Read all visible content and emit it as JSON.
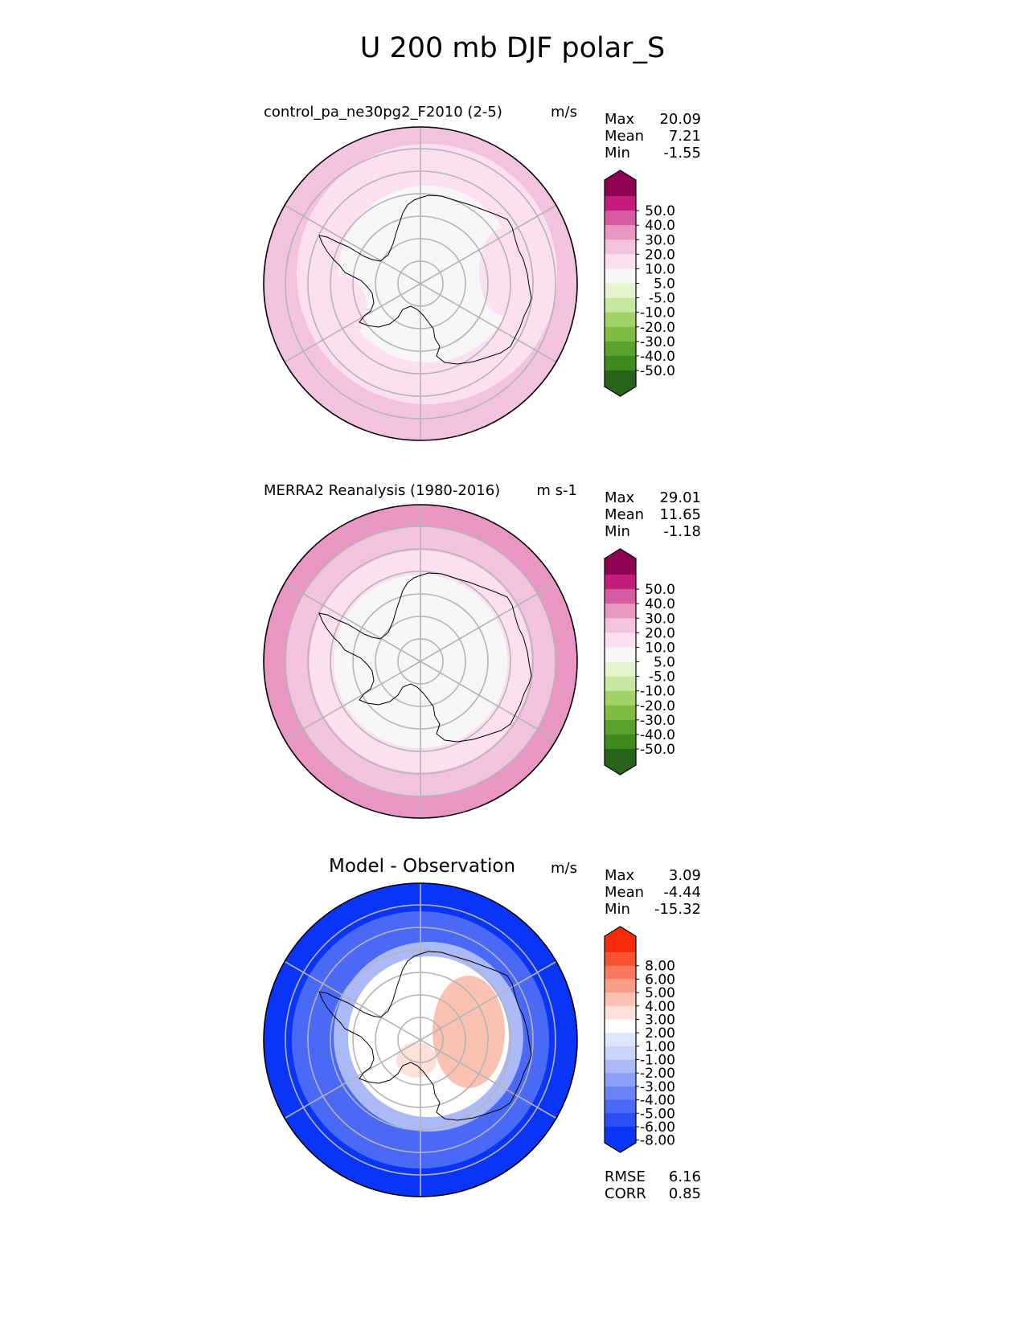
{
  "title": "U 200 mb DJF polar_S",
  "panels": [
    {
      "name": "control_pa_ne30pg2_F2010 (2-5)",
      "units": "m/s",
      "stats": [
        {
          "label": "Max",
          "value": "20.09"
        },
        {
          "label": "Mean",
          "value": "7.21"
        },
        {
          "label": "Min",
          "value": "-1.55"
        }
      ],
      "colorbar_ticks": [
        "50.0",
        "40.0",
        "30.0",
        "20.0",
        "10.0",
        "5.0",
        "-5.0",
        "-10.0",
        "-20.0",
        "-30.0",
        "-40.0",
        "-50.0"
      ]
    },
    {
      "name": "MERRA2 Reanalysis (1980-2016)",
      "units": "m s-1",
      "stats": [
        {
          "label": "Max",
          "value": "29.01"
        },
        {
          "label": "Mean",
          "value": "11.65"
        },
        {
          "label": "Min",
          "value": "-1.18"
        }
      ],
      "colorbar_ticks": [
        "50.0",
        "40.0",
        "30.0",
        "20.0",
        "10.0",
        "5.0",
        "-5.0",
        "-10.0",
        "-20.0",
        "-30.0",
        "-40.0",
        "-50.0"
      ]
    },
    {
      "name": "Model - Observation",
      "units": "m/s",
      "stats": [
        {
          "label": "Max",
          "value": "3.09"
        },
        {
          "label": "Mean",
          "value": "-4.44"
        },
        {
          "label": "Min",
          "value": "-15.32"
        }
      ],
      "colorbar_ticks": [
        "8.00",
        "6.00",
        "5.00",
        "4.00",
        "3.00",
        "2.00",
        "1.00",
        "-1.00",
        "-2.00",
        "-3.00",
        "-4.00",
        "-5.00",
        "-6.00",
        "-8.00"
      ],
      "metrics": [
        {
          "label": "RMSE",
          "value": "6.16"
        },
        {
          "label": "CORR",
          "value": "0.85"
        }
      ]
    }
  ],
  "chart_data": [
    {
      "type": "heatmap",
      "projection": "south polar stereographic",
      "title": "control_pa_ne30pg2_F2010 (2-5)",
      "units": "m/s",
      "max": 20.09,
      "mean": 7.21,
      "min": -1.55,
      "levels": [
        -50,
        -40,
        -30,
        -20,
        -10,
        -5,
        5,
        10,
        20,
        30,
        40,
        50
      ],
      "colors": [
        "#276419",
        "#3d8b1f",
        "#5ca12e",
        "#7fbc41",
        "#a4d26a",
        "#c7e8a0",
        "#e6f5d0",
        "#f7f7f7",
        "#fde0ef",
        "#f3c2de",
        "#e996c5",
        "#d65aa2",
        "#c51b7d",
        "#8e0152"
      ],
      "fill_regions": [
        {
          "desc": "outer ring and lobes",
          "band": [
            10,
            20
          ],
          "color": "#f3c2de"
        },
        {
          "desc": "transition ring",
          "band": [
            5,
            10
          ],
          "color": "#fde0ef"
        },
        {
          "desc": "polar interior",
          "band": [
            -5,
            5
          ],
          "color": "#f7f7f7"
        }
      ]
    },
    {
      "type": "heatmap",
      "projection": "south polar stereographic",
      "title": "MERRA2 Reanalysis (1980-2016)",
      "units": "m s-1",
      "max": 29.01,
      "mean": 11.65,
      "min": -1.18,
      "levels": [
        -50,
        -40,
        -30,
        -20,
        -10,
        -5,
        5,
        10,
        20,
        30,
        40,
        50
      ],
      "colors": [
        "#276419",
        "#3d8b1f",
        "#5ca12e",
        "#7fbc41",
        "#a4d26a",
        "#c7e8a0",
        "#e6f5d0",
        "#f7f7f7",
        "#fde0ef",
        "#f3c2de",
        "#e996c5",
        "#d65aa2",
        "#c51b7d",
        "#8e0152"
      ],
      "fill_regions": [
        {
          "desc": "outer ring",
          "band": [
            20,
            30
          ],
          "color": "#e996c5"
        },
        {
          "desc": "middle ring",
          "band": [
            10,
            20
          ],
          "color": "#f3c2de"
        },
        {
          "desc": "inner ring",
          "band": [
            5,
            10
          ],
          "color": "#fde0ef"
        },
        {
          "desc": "polar interior",
          "band": [
            -5,
            5
          ],
          "color": "#f7f7f7"
        }
      ]
    },
    {
      "type": "heatmap",
      "projection": "south polar stereographic",
      "title": "Model - Observation",
      "units": "m/s",
      "max": 3.09,
      "mean": -4.44,
      "min": -15.32,
      "rmse": 6.16,
      "corr": 0.85,
      "levels": [
        -8,
        -6,
        -5,
        -4,
        -3,
        -2,
        -1,
        1,
        2,
        3,
        4,
        5,
        6,
        8
      ],
      "colors": [
        "#0a35f7",
        "#2a4ff7",
        "#4a69f7",
        "#6a84f7",
        "#8b9ff7",
        "#abbaf7",
        "#cbd4f9",
        "#dfe5fb",
        "#ffffff",
        "#fde0da",
        "#fbc2b4",
        "#fa9e88",
        "#f9795e",
        "#f85233",
        "#f72a0a"
      ],
      "fill_regions": [
        {
          "desc": "outer ring",
          "band": [
            -8,
            -6
          ],
          "color": "#0a35f7"
        },
        {
          "desc": "mid ring",
          "band": [
            -6,
            -4
          ],
          "color": "#4a69f7"
        },
        {
          "desc": "inner ring",
          "band": [
            -3,
            -1
          ],
          "color": "#abbaf7"
        },
        {
          "desc": "polar interior",
          "band": [
            -1,
            1
          ],
          "color": "#ffffff"
        },
        {
          "desc": "positive patch",
          "band": [
            1,
            3
          ],
          "color": "#fbc2b4"
        }
      ]
    }
  ]
}
